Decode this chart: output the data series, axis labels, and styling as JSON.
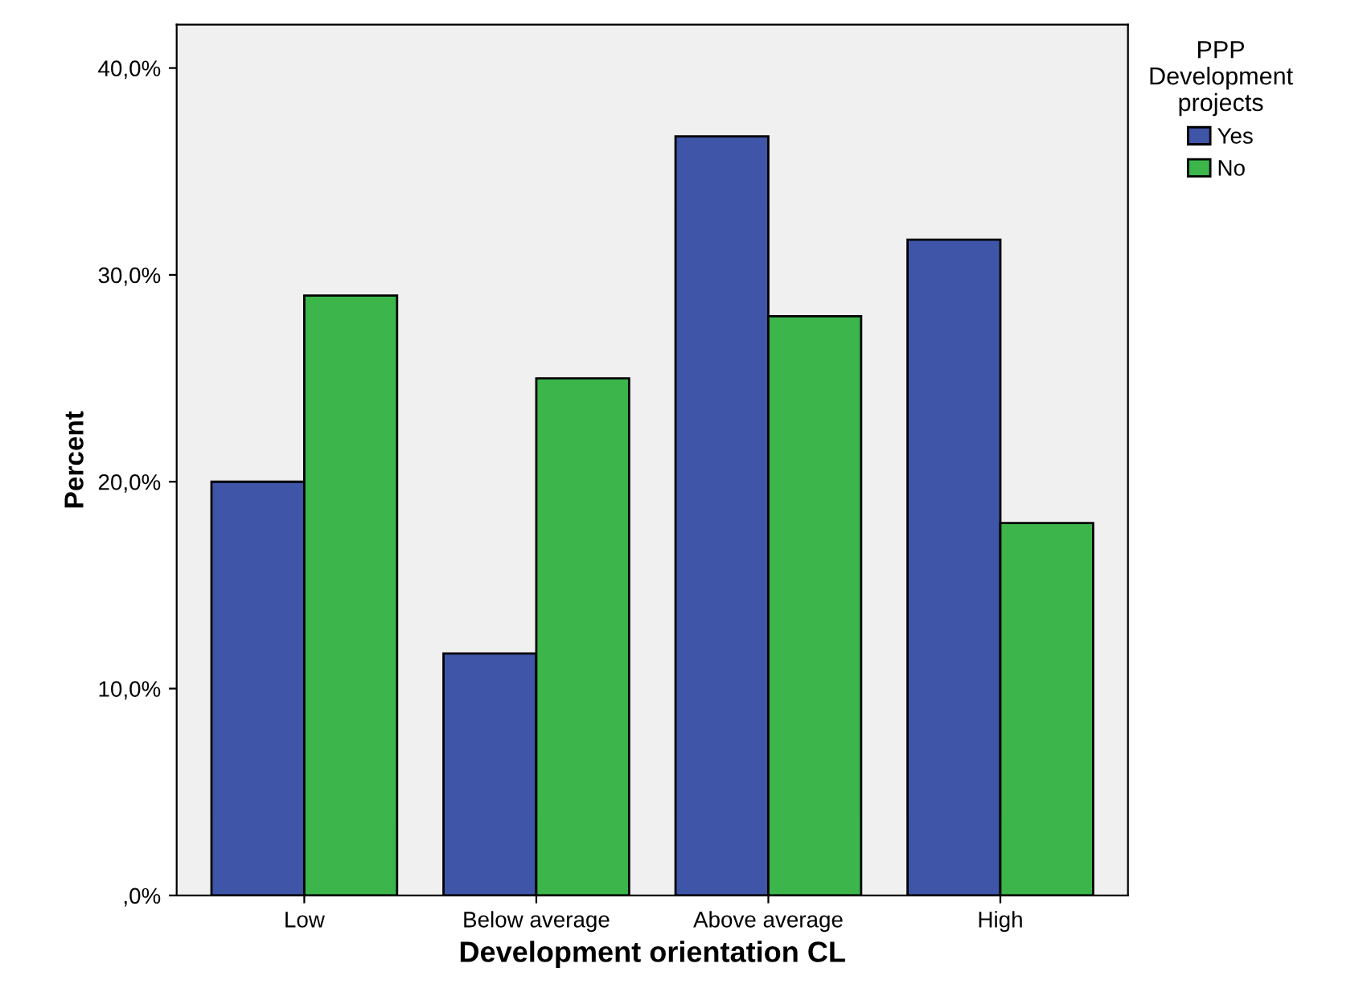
{
  "chart_data": {
    "type": "bar",
    "xlabel": "Development orientation CL",
    "ylabel": "Percent",
    "legend_title": "PPP\nDevelopment\nprojects",
    "categories": [
      "Low",
      "Below average",
      "Above average",
      "High"
    ],
    "series": [
      {
        "name": "Yes",
        "color": "#3f55a8",
        "values": [
          20.0,
          11.7,
          36.7,
          31.7
        ]
      },
      {
        "name": "No",
        "color": "#3cb54a",
        "values": [
          29.0,
          25.0,
          28.0,
          18.0
        ]
      }
    ],
    "ylim": [
      0,
      42.1
    ],
    "yticks": [
      {
        "value": 0,
        "label": ",0%"
      },
      {
        "value": 10,
        "label": "10,0%"
      },
      {
        "value": 20,
        "label": "20,0%"
      },
      {
        "value": 30,
        "label": "30,0%"
      },
      {
        "value": 40,
        "label": "40,0%"
      }
    ],
    "grid": false,
    "legend": "top right"
  }
}
